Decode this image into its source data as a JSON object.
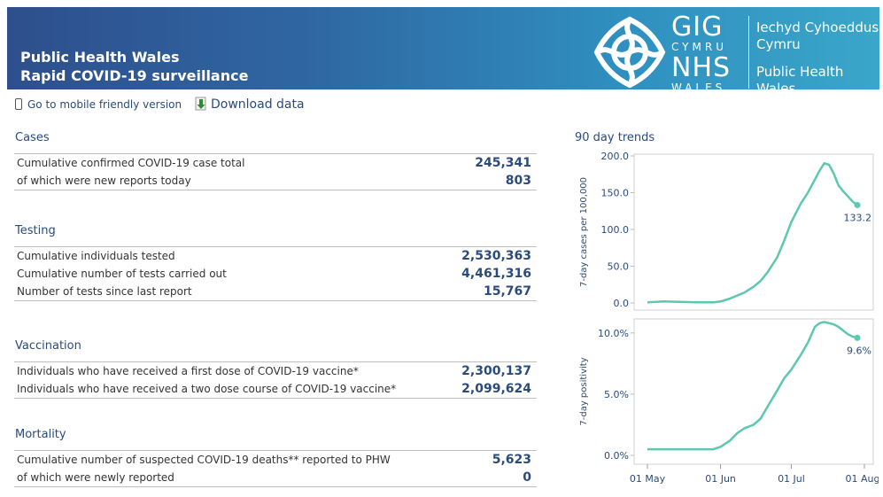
{
  "header": {
    "title_line1": "Public Health Wales",
    "title_line2": "Rapid COVID-19 surveillance",
    "logo": {
      "gig": "GIG",
      "cymru": "CYMRU",
      "nhs": "NHS",
      "wales": "WALES",
      "welsh_line1": "Iechyd Cyhoeddus",
      "welsh_line2": "Cymru",
      "english_line1": "Public Health",
      "english_line2": "Wales"
    }
  },
  "toolbar": {
    "mobile_label": "Go to mobile friendly version",
    "download_label": "Download data"
  },
  "sections": {
    "cases": {
      "title": "Cases",
      "rows": [
        {
          "label": "Cumulative confirmed COVID-19 case total",
          "value": "245,341"
        },
        {
          "label": "of which were new reports today",
          "value": "803"
        }
      ]
    },
    "testing": {
      "title": "Testing",
      "rows": [
        {
          "label": "Cumulative individuals tested",
          "value": "2,530,363"
        },
        {
          "label": "Cumulative number of tests carried out",
          "value": "4,461,316"
        },
        {
          "label": "Number of tests since last report",
          "value": "15,767"
        }
      ]
    },
    "vaccination": {
      "title": "Vaccination",
      "rows": [
        {
          "label": "Individuals who have received a first dose of COVID-19 vaccine*",
          "value": "2,300,137"
        },
        {
          "label": "Individuals who have received a two dose course of COVID-19 vaccine*",
          "value": "2,099,624"
        }
      ]
    },
    "mortality": {
      "title": "Mortality",
      "rows": [
        {
          "label": "Cumulative number of suspected COVID-19 deaths** reported to PHW",
          "value": "5,623"
        },
        {
          "label": "of which were newly reported",
          "value": "0"
        }
      ]
    }
  },
  "trends_title": "90 day trends",
  "chart_data": [
    {
      "type": "line",
      "ylabel": "7-day cases per 100,000",
      "ylim": [
        0,
        200
      ],
      "yticks": [
        "0.0",
        "50.0",
        "100.0",
        "150.0",
        "200.0"
      ],
      "ytick_values": [
        0,
        50,
        100,
        150,
        200
      ],
      "color": "#5cc8b0",
      "x": [
        0,
        7,
        14,
        21,
        28,
        31,
        35,
        38,
        41,
        45,
        48,
        51,
        55,
        58,
        61,
        65,
        68,
        71,
        73,
        75,
        77,
        79,
        81,
        83,
        85,
        87,
        89
      ],
      "y": [
        1,
        2,
        1.5,
        1,
        1,
        2,
        6,
        10,
        14,
        22,
        30,
        42,
        62,
        85,
        110,
        135,
        150,
        168,
        180,
        190,
        188,
        176,
        160,
        152,
        145,
        138,
        133.2
      ],
      "end_label": "133.2"
    },
    {
      "type": "line",
      "ylabel": "7-day positivity",
      "ylim": [
        0,
        11
      ],
      "yticks": [
        "0.0%",
        "5.0%",
        "10.0%"
      ],
      "ytick_values": [
        0,
        5,
        10
      ],
      "color": "#5cc8b0",
      "x": [
        0,
        7,
        14,
        21,
        28,
        31,
        35,
        38,
        41,
        45,
        48,
        51,
        55,
        58,
        61,
        65,
        68,
        71,
        73,
        75,
        77,
        79,
        81,
        83,
        85,
        87,
        89
      ],
      "y": [
        0.5,
        0.5,
        0.5,
        0.5,
        0.5,
        0.7,
        1.2,
        1.8,
        2.2,
        2.5,
        3,
        4,
        5.3,
        6.3,
        7,
        8.2,
        9.2,
        10.5,
        10.8,
        10.9,
        10.8,
        10.7,
        10.5,
        10.2,
        9.9,
        9.7,
        9.6
      ],
      "end_label": "9.6%"
    }
  ],
  "x_axis": {
    "ticks": [
      "01 May",
      "01 Jun",
      "01 Jul",
      "01 Aug"
    ],
    "tick_days": [
      0,
      31,
      61,
      92
    ]
  }
}
